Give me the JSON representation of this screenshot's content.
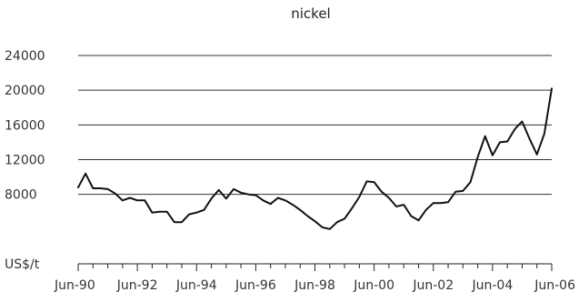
{
  "chart_data": {
    "type": "line",
    "title": "nickel",
    "xlabel": "",
    "ylabel": "",
    "y_unit_label": "US$/t",
    "ylim": [
      0,
      24000
    ],
    "yticks": [
      24000,
      20000,
      16000,
      12000,
      8000
    ],
    "grid": {
      "horizontal": true,
      "vertical": false
    },
    "x_tick_labels": [
      "Jun-90",
      "Jun-92",
      "Jun-94",
      "Jun-96",
      "Jun-98",
      "Jun-00",
      "Jun-02",
      "Jun-04",
      "Jun-06"
    ],
    "series": [
      {
        "values": [
          8800,
          10400,
          8700,
          8700,
          8600,
          8100,
          7300,
          7600,
          7300,
          7300,
          5900,
          6000,
          6000,
          4800,
          4800,
          5700,
          5900,
          6200,
          7500,
          8500,
          7500,
          8600,
          8200,
          8000,
          7900,
          7300,
          6900,
          7600,
          7300,
          6800,
          6200,
          5500,
          4900,
          4200,
          4000,
          4800,
          5200,
          6400,
          7700,
          9500,
          9400,
          8300,
          7600,
          6600,
          6800,
          5500,
          5000,
          6200,
          7000,
          7000,
          7100,
          8300,
          8400,
          9400,
          12300,
          14700,
          12500,
          14000,
          14100,
          15500,
          16400,
          14400,
          12600,
          15000,
          20200
        ]
      }
    ]
  }
}
